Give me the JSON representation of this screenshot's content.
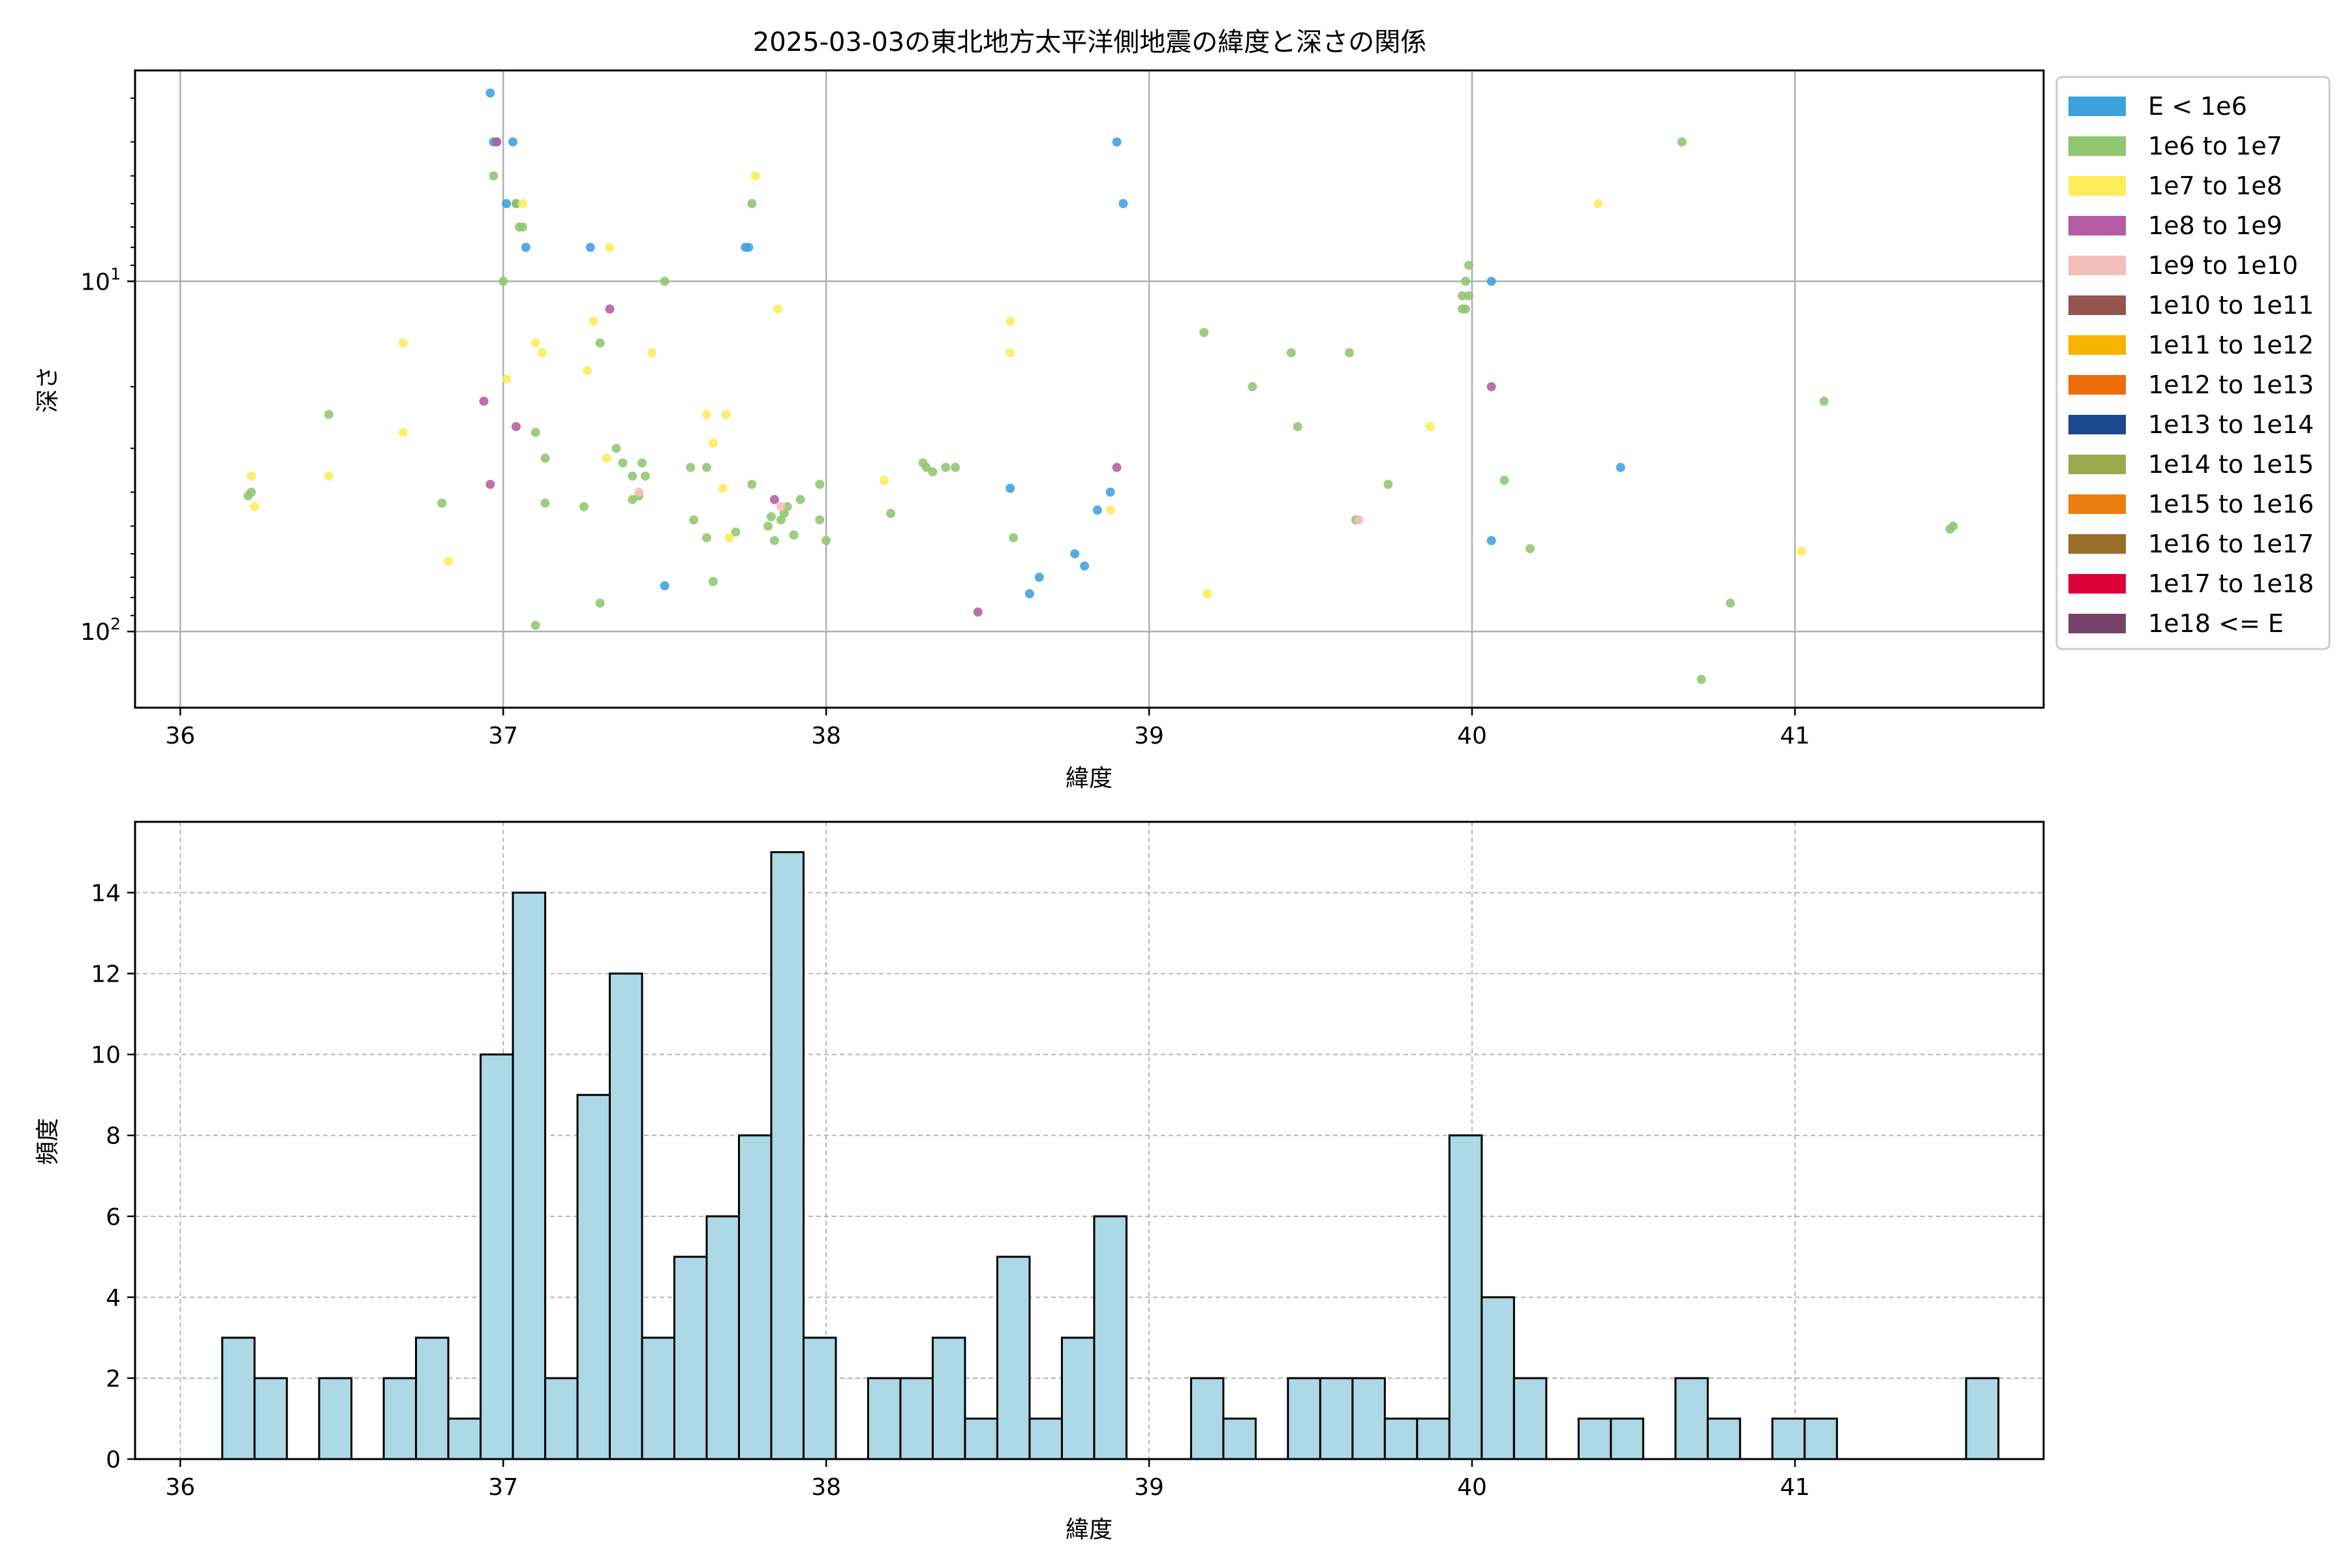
{
  "page_title": "2025-03-03の東北地方太平洋側地震の緯度と深さの関係",
  "colors": {
    "hist_fill": "#add8e6",
    "grid": "#b0b0b0",
    "legend": [
      "#3ca1dd",
      "#8fc66f",
      "#ffec5a",
      "#b65aa3",
      "#f4bfb8",
      "#945450",
      "#f8b200",
      "#ec6c0a",
      "#1e4890",
      "#9aab4f",
      "#ec7e10",
      "#986f27",
      "#de0039",
      "#764268"
    ]
  },
  "chart_data": [
    {
      "type": "scatter",
      "title": "2025-03-03の東北地方太平洋側地震の緯度と深さの関係",
      "xlabel": "緯度",
      "ylabel": "深さ",
      "xlim": [
        35.86,
        41.77
      ],
      "ylim": [
        165,
        2.5
      ],
      "y_scale": "log",
      "y_inverted": true,
      "grid": true,
      "legend_position": "outside-right",
      "x_ticks": [
        "36",
        "37",
        "38",
        "39",
        "40",
        "41"
      ],
      "y_ticks": [
        {
          "label": "10",
          "sup": "1",
          "value": 10
        },
        {
          "label": "10",
          "sup": "2",
          "value": 100
        }
      ],
      "legend": [
        "E < 1e6",
        "1e6 to 1e7",
        "1e7 to 1e8",
        "1e8 to 1e9",
        "1e9 to 1e10",
        "1e10 to 1e11",
        "1e11 to 1e12",
        "1e12 to 1e13",
        "1e13 to 1e14",
        "1e14 to 1e15",
        "1e15 to 1e16",
        "1e16 to 1e17",
        "1e17 to 1e18",
        "1e18 <= E"
      ],
      "points": [
        {
          "x": 36.96,
          "y": 2.9,
          "c": 0
        },
        {
          "x": 36.98,
          "y": 4.0,
          "c": 0
        },
        {
          "x": 36.97,
          "y": 4.0,
          "c": 0
        },
        {
          "x": 37.03,
          "y": 4.0,
          "c": 0
        },
        {
          "x": 37.01,
          "y": 6.0,
          "c": 0
        },
        {
          "x": 37.04,
          "y": 6.0,
          "c": 0
        },
        {
          "x": 37.07,
          "y": 8.0,
          "c": 0
        },
        {
          "x": 37.27,
          "y": 8.0,
          "c": 0
        },
        {
          "x": 37.76,
          "y": 8.0,
          "c": 0
        },
        {
          "x": 37.75,
          "y": 8.0,
          "c": 0
        },
        {
          "x": 38.9,
          "y": 4.0,
          "c": 0
        },
        {
          "x": 38.92,
          "y": 6.0,
          "c": 0
        },
        {
          "x": 40.06,
          "y": 10.0,
          "c": 0
        },
        {
          "x": 40.46,
          "y": 34.0,
          "c": 0
        },
        {
          "x": 38.57,
          "y": 39.0,
          "c": 0
        },
        {
          "x": 38.88,
          "y": 40.0,
          "c": 0
        },
        {
          "x": 38.84,
          "y": 45.0,
          "c": 0
        },
        {
          "x": 40.06,
          "y": 55.0,
          "c": 0
        },
        {
          "x": 38.77,
          "y": 60.0,
          "c": 0
        },
        {
          "x": 38.8,
          "y": 65.0,
          "c": 0
        },
        {
          "x": 38.66,
          "y": 70.0,
          "c": 0
        },
        {
          "x": 38.63,
          "y": 78.0,
          "c": 0
        },
        {
          "x": 37.5,
          "y": 74.0,
          "c": 0
        },
        {
          "x": 36.97,
          "y": 5.0,
          "c": 1
        },
        {
          "x": 37.04,
          "y": 6.0,
          "c": 1
        },
        {
          "x": 37.05,
          "y": 7.0,
          "c": 1
        },
        {
          "x": 37.06,
          "y": 7.0,
          "c": 1
        },
        {
          "x": 37.0,
          "y": 10.0,
          "c": 1
        },
        {
          "x": 37.5,
          "y": 10.0,
          "c": 1
        },
        {
          "x": 37.77,
          "y": 6.0,
          "c": 1
        },
        {
          "x": 36.46,
          "y": 24.0,
          "c": 1
        },
        {
          "x": 37.3,
          "y": 15.0,
          "c": 1
        },
        {
          "x": 37.1,
          "y": 27.0,
          "c": 1
        },
        {
          "x": 37.13,
          "y": 32.0,
          "c": 1
        },
        {
          "x": 37.35,
          "y": 30.0,
          "c": 1
        },
        {
          "x": 37.37,
          "y": 33.0,
          "c": 1
        },
        {
          "x": 37.4,
          "y": 36.0,
          "c": 1
        },
        {
          "x": 37.43,
          "y": 33.0,
          "c": 1
        },
        {
          "x": 37.44,
          "y": 36.0,
          "c": 1
        },
        {
          "x": 37.4,
          "y": 42.0,
          "c": 1
        },
        {
          "x": 37.42,
          "y": 41.0,
          "c": 1
        },
        {
          "x": 37.13,
          "y": 43.0,
          "c": 1
        },
        {
          "x": 37.25,
          "y": 44.0,
          "c": 1
        },
        {
          "x": 36.81,
          "y": 43.0,
          "c": 1
        },
        {
          "x": 36.22,
          "y": 40.0,
          "c": 1
        },
        {
          "x": 37.58,
          "y": 34.0,
          "c": 1
        },
        {
          "x": 37.63,
          "y": 34.0,
          "c": 1
        },
        {
          "x": 37.59,
          "y": 48.0,
          "c": 1
        },
        {
          "x": 37.63,
          "y": 54.0,
          "c": 1
        },
        {
          "x": 37.72,
          "y": 52.0,
          "c": 1
        },
        {
          "x": 37.77,
          "y": 38.0,
          "c": 1
        },
        {
          "x": 37.82,
          "y": 50.0,
          "c": 1
        },
        {
          "x": 37.83,
          "y": 47.0,
          "c": 1
        },
        {
          "x": 37.84,
          "y": 55.0,
          "c": 1
        },
        {
          "x": 37.86,
          "y": 48.0,
          "c": 1
        },
        {
          "x": 37.87,
          "y": 46.0,
          "c": 1
        },
        {
          "x": 37.88,
          "y": 44.0,
          "c": 1
        },
        {
          "x": 37.9,
          "y": 53.0,
          "c": 1
        },
        {
          "x": 37.92,
          "y": 42.0,
          "c": 1
        },
        {
          "x": 37.98,
          "y": 38.0,
          "c": 1
        },
        {
          "x": 38.0,
          "y": 55.0,
          "c": 1
        },
        {
          "x": 37.98,
          "y": 48.0,
          "c": 1
        },
        {
          "x": 38.2,
          "y": 46.0,
          "c": 1
        },
        {
          "x": 38.3,
          "y": 33.0,
          "c": 1
        },
        {
          "x": 38.31,
          "y": 34.0,
          "c": 1
        },
        {
          "x": 38.33,
          "y": 35.0,
          "c": 1
        },
        {
          "x": 38.37,
          "y": 34.0,
          "c": 1
        },
        {
          "x": 38.4,
          "y": 34.0,
          "c": 1
        },
        {
          "x": 38.58,
          "y": 54.0,
          "c": 1
        },
        {
          "x": 37.65,
          "y": 72.0,
          "c": 1
        },
        {
          "x": 37.3,
          "y": 83.0,
          "c": 1
        },
        {
          "x": 37.1,
          "y": 96.0,
          "c": 1
        },
        {
          "x": 39.17,
          "y": 14.0,
          "c": 1
        },
        {
          "x": 39.32,
          "y": 20.0,
          "c": 1
        },
        {
          "x": 39.44,
          "y": 16.0,
          "c": 1
        },
        {
          "x": 39.46,
          "y": 26.0,
          "c": 1
        },
        {
          "x": 39.62,
          "y": 16.0,
          "c": 1
        },
        {
          "x": 39.64,
          "y": 48.0,
          "c": 1
        },
        {
          "x": 39.74,
          "y": 38.0,
          "c": 1
        },
        {
          "x": 39.98,
          "y": 10.0,
          "c": 1
        },
        {
          "x": 39.97,
          "y": 11.0,
          "c": 1
        },
        {
          "x": 39.99,
          "y": 11.0,
          "c": 1
        },
        {
          "x": 39.97,
          "y": 12.0,
          "c": 1
        },
        {
          "x": 39.98,
          "y": 12.0,
          "c": 1
        },
        {
          "x": 39.99,
          "y": 9.0,
          "c": 1
        },
        {
          "x": 40.1,
          "y": 37.0,
          "c": 1
        },
        {
          "x": 40.18,
          "y": 58.0,
          "c": 1
        },
        {
          "x": 40.65,
          "y": 4.0,
          "c": 1
        },
        {
          "x": 40.8,
          "y": 83.0,
          "c": 1
        },
        {
          "x": 40.71,
          "y": 137.0,
          "c": 1
        },
        {
          "x": 41.09,
          "y": 22.0,
          "c": 1
        },
        {
          "x": 41.48,
          "y": 51.0,
          "c": 1
        },
        {
          "x": 41.49,
          "y": 50.0,
          "c": 1
        },
        {
          "x": 36.21,
          "y": 41.0,
          "c": 1
        },
        {
          "x": 37.06,
          "y": 6.0,
          "c": 2
        },
        {
          "x": 37.33,
          "y": 8.0,
          "c": 2
        },
        {
          "x": 37.78,
          "y": 5.0,
          "c": 2
        },
        {
          "x": 37.85,
          "y": 12.0,
          "c": 2
        },
        {
          "x": 37.28,
          "y": 13.0,
          "c": 2
        },
        {
          "x": 37.1,
          "y": 15.0,
          "c": 2
        },
        {
          "x": 37.12,
          "y": 16.0,
          "c": 2
        },
        {
          "x": 37.46,
          "y": 16.0,
          "c": 2
        },
        {
          "x": 36.69,
          "y": 15.0,
          "c": 2
        },
        {
          "x": 37.26,
          "y": 18.0,
          "c": 2
        },
        {
          "x": 37.01,
          "y": 19.0,
          "c": 2
        },
        {
          "x": 36.69,
          "y": 27.0,
          "c": 2
        },
        {
          "x": 36.46,
          "y": 36.0,
          "c": 2
        },
        {
          "x": 36.22,
          "y": 36.0,
          "c": 2
        },
        {
          "x": 36.23,
          "y": 44.0,
          "c": 2
        },
        {
          "x": 36.83,
          "y": 63.0,
          "c": 2
        },
        {
          "x": 37.32,
          "y": 32.0,
          "c": 2
        },
        {
          "x": 37.63,
          "y": 24.0,
          "c": 2
        },
        {
          "x": 37.65,
          "y": 29.0,
          "c": 2
        },
        {
          "x": 37.69,
          "y": 24.0,
          "c": 2
        },
        {
          "x": 37.68,
          "y": 39.0,
          "c": 2
        },
        {
          "x": 37.7,
          "y": 54.0,
          "c": 2
        },
        {
          "x": 38.57,
          "y": 13.0,
          "c": 2
        },
        {
          "x": 38.57,
          "y": 16.0,
          "c": 2
        },
        {
          "x": 38.18,
          "y": 37.0,
          "c": 2
        },
        {
          "x": 38.88,
          "y": 45.0,
          "c": 2
        },
        {
          "x": 39.18,
          "y": 78.0,
          "c": 2
        },
        {
          "x": 39.87,
          "y": 26.0,
          "c": 2
        },
        {
          "x": 40.39,
          "y": 6.0,
          "c": 2
        },
        {
          "x": 41.02,
          "y": 59.0,
          "c": 2
        },
        {
          "x": 37.33,
          "y": 12.0,
          "c": 3
        },
        {
          "x": 36.94,
          "y": 22.0,
          "c": 3
        },
        {
          "x": 37.04,
          "y": 26.0,
          "c": 3
        },
        {
          "x": 36.96,
          "y": 38.0,
          "c": 3
        },
        {
          "x": 37.84,
          "y": 42.0,
          "c": 3
        },
        {
          "x": 38.47,
          "y": 88.0,
          "c": 3
        },
        {
          "x": 38.9,
          "y": 34.0,
          "c": 3
        },
        {
          "x": 40.06,
          "y": 20.0,
          "c": 3
        },
        {
          "x": 36.98,
          "y": 4.0,
          "c": 3
        },
        {
          "x": 37.42,
          "y": 40.0,
          "c": 4
        },
        {
          "x": 39.65,
          "y": 48.0,
          "c": 4
        },
        {
          "x": 37.86,
          "y": 44.0,
          "c": 4
        }
      ]
    },
    {
      "type": "bar",
      "xlabel": "緯度",
      "ylabel": "頻度",
      "xlim": [
        35.86,
        41.77
      ],
      "ylim": [
        0,
        15.75
      ],
      "grid": true,
      "x_ticks": [
        "36",
        "37",
        "38",
        "39",
        "40",
        "41"
      ],
      "y_ticks": [
        "0",
        "2",
        "4",
        "6",
        "8",
        "10",
        "12",
        "14"
      ],
      "bin_start": 36.13,
      "bin_width": 0.1,
      "values": [
        3,
        2,
        0,
        2,
        0,
        2,
        3,
        1,
        10,
        14,
        2,
        9,
        12,
        3,
        5,
        6,
        8,
        15,
        3,
        0,
        2,
        2,
        3,
        1,
        5,
        1,
        3,
        6,
        0,
        0,
        2,
        1,
        0,
        2,
        2,
        2,
        1,
        1,
        8,
        4,
        2,
        0,
        1,
        1,
        0,
        2,
        1,
        0,
        1,
        1,
        0,
        0,
        0,
        0,
        2
      ]
    }
  ]
}
